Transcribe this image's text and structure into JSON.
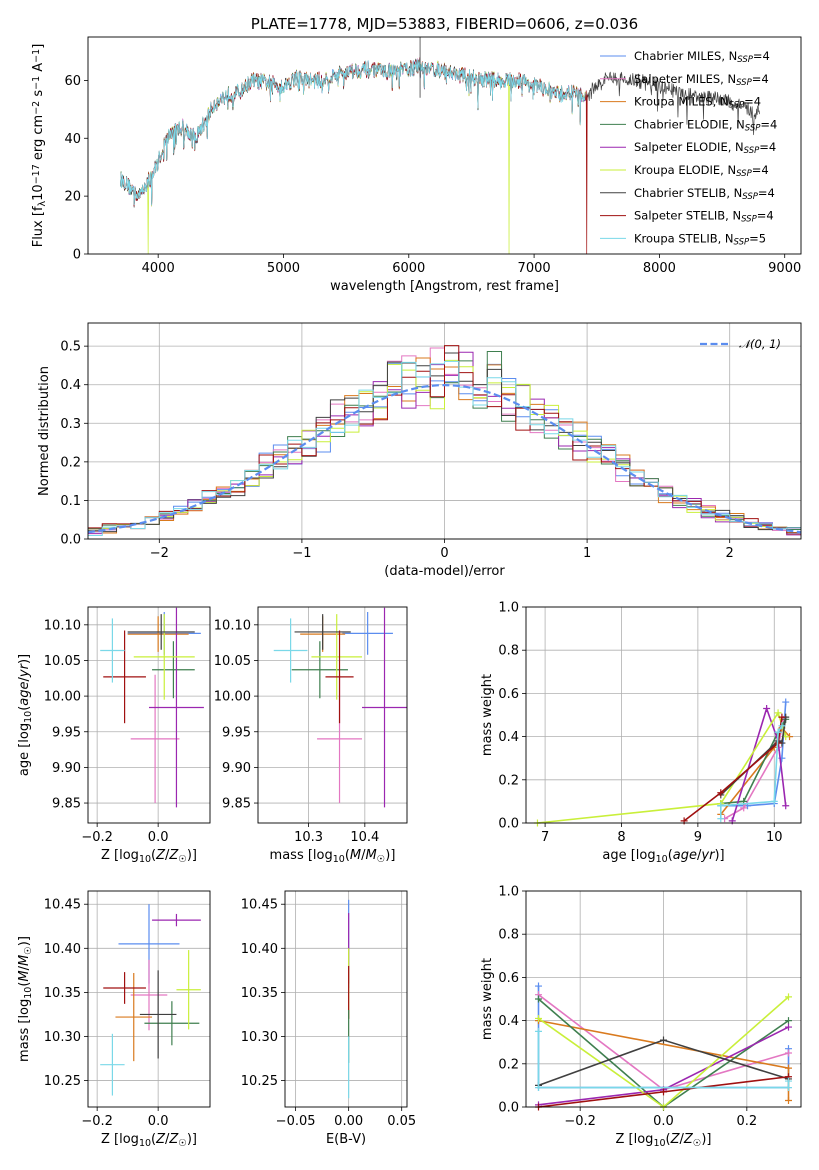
{
  "figure": {
    "title": "PLATE=1778, MJD=53883, FIBERID=0606, z=0.036"
  },
  "colors": {
    "Chabrier MILES": "#5b8def",
    "Salpeter MILES": "#e377c2",
    "Kroupa MILES": "#d97a1e",
    "Chabrier ELODIE": "#3f7f4f",
    "Salpeter ELODIE": "#9b27b0",
    "Kroupa ELODIE": "#c9ef3a",
    "Chabrier STELIB": "#404040",
    "Salpeter STELIB": "#a01010",
    "Kroupa STELIB": "#7ad8e8"
  },
  "legend": {
    "spectrum_series": [
      "Chabrier MILES, N_SSP=4",
      "Salpeter MILES, N_SSP=4",
      "Kroupa MILES, N_SSP=4",
      "Chabrier ELODIE, N_SSP=4",
      "Salpeter ELODIE, N_SSP=4",
      "Kroupa ELODIE, N_SSP=4",
      "Chabrier STELIB, N_SSP=4",
      "Salpeter STELIB, N_SSP=4",
      "Kroupa STELIB, N_SSP=5"
    ],
    "hist_gauss": "𝒩(0, 1)"
  },
  "chart_data": [
    {
      "id": "spectrum",
      "type": "line",
      "title": "PLATE=1778, MJD=53883, FIBERID=0606, z=0.036",
      "xlabel": "wavelength [Angstrom, rest frame]",
      "ylabel": "Flux [f_λ 10^-17 erg cm^-2 s^-1 A^-1]",
      "xlim": [
        3440,
        9130
      ],
      "ylim": [
        0,
        75
      ],
      "xticks": [
        4000,
        5000,
        6000,
        7000,
        8000,
        9000
      ],
      "yticks": [
        0,
        20,
        40,
        60
      ],
      "grid": false,
      "legend_position": "upper right",
      "spectrum_knots": [
        [
          3700,
          26
        ],
        [
          3750,
          24
        ],
        [
          3800,
          22
        ],
        [
          3850,
          20
        ],
        [
          3900,
          24
        ],
        [
          3950,
          27
        ],
        [
          4000,
          32
        ],
        [
          4050,
          38
        ],
        [
          4100,
          42
        ],
        [
          4200,
          44
        ],
        [
          4300,
          40
        ],
        [
          4350,
          44
        ],
        [
          4450,
          52
        ],
        [
          4550,
          55
        ],
        [
          4650,
          56
        ],
        [
          4750,
          60
        ],
        [
          4900,
          59
        ],
        [
          5000,
          58
        ],
        [
          5100,
          61
        ],
        [
          5200,
          60
        ],
        [
          5300,
          60
        ],
        [
          5500,
          63
        ],
        [
          5700,
          64
        ],
        [
          5800,
          63
        ],
        [
          5900,
          63
        ],
        [
          6000,
          64
        ],
        [
          6100,
          65
        ],
        [
          6300,
          63
        ],
        [
          6500,
          61
        ],
        [
          6700,
          60
        ],
        [
          6900,
          60
        ],
        [
          7000,
          58
        ],
        [
          7100,
          57
        ],
        [
          7200,
          55
        ],
        [
          7300,
          56
        ],
        [
          7400,
          54
        ],
        [
          7500,
          58
        ],
        [
          7600,
          61
        ],
        [
          7800,
          60
        ],
        [
          8000,
          58
        ],
        [
          8200,
          55
        ],
        [
          8400,
          54
        ],
        [
          8600,
          52
        ],
        [
          8700,
          50
        ],
        [
          8800,
          49
        ]
      ],
      "dropouts": [
        {
          "series": "Kroupa ELODIE",
          "x": 3920
        },
        {
          "series": "Kroupa ELODIE",
          "x": 6800
        },
        {
          "series": "Salpeter STELIB",
          "x": 7420
        }
      ],
      "series_extent": [
        {
          "name": "Chabrier MILES",
          "x": [
            3700,
            7410
          ]
        },
        {
          "name": "Salpeter MILES",
          "x": [
            3700,
            7410
          ]
        },
        {
          "name": "Kroupa MILES",
          "x": [
            3700,
            7410
          ]
        },
        {
          "name": "Chabrier ELODIE",
          "x": [
            3700,
            7410
          ]
        },
        {
          "name": "Salpeter ELODIE",
          "x": [
            3700,
            7410
          ]
        },
        {
          "name": "Kroupa ELODIE",
          "x": [
            3700,
            7410
          ]
        },
        {
          "name": "Chabrier STELIB",
          "x": [
            3700,
            8800
          ]
        },
        {
          "name": "Salpeter STELIB",
          "x": [
            3700,
            7420
          ]
        },
        {
          "name": "Kroupa STELIB",
          "x": [
            3700,
            7410
          ]
        }
      ]
    },
    {
      "id": "residual_hist",
      "type": "line",
      "xlabel": "(data-model)/error",
      "ylabel": "Normed distribution",
      "xlim": [
        -2.5,
        2.5
      ],
      "ylim": [
        0,
        0.56
      ],
      "xticks": [
        -2,
        -1,
        0,
        1,
        2
      ],
      "yticks": [
        0.0,
        0.1,
        0.2,
        0.3,
        0.4,
        0.5
      ],
      "grid": true,
      "legend_position": "upper right",
      "bin_width": 0.1,
      "gaussian": {
        "name": "𝒩(0, 1)",
        "mu": 0,
        "sigma": 1,
        "style": "dashed"
      }
    },
    {
      "id": "age_vs_Z",
      "type": "scatter",
      "xlabel": "Z [log10(Z/Z☉)]",
      "ylabel": "age [log10(age/yr)]",
      "xlim": [
        -0.23,
        0.17
      ],
      "ylim": [
        9.822,
        10.125
      ],
      "xticks": [
        -0.2,
        0.0
      ],
      "yticks": [
        9.85,
        9.9,
        9.95,
        10.0,
        10.05,
        10.1
      ],
      "grid": true,
      "points": [
        {
          "series": "Chabrier MILES",
          "x": 0.02,
          "y": 10.088,
          "xerr": 0.12,
          "yerr": 0.03
        },
        {
          "series": "Salpeter MILES",
          "x": -0.01,
          "y": 9.94,
          "xerr": 0.08,
          "yerr": 0.09
        },
        {
          "series": "Kroupa MILES",
          "x": 0.0,
          "y": 10.087,
          "xerr": 0.1,
          "yerr": 0.025
        },
        {
          "series": "Chabrier ELODIE",
          "x": 0.05,
          "y": 10.037,
          "xerr": 0.07,
          "yerr": 0.04
        },
        {
          "series": "Salpeter ELODIE",
          "x": 0.06,
          "y": 9.984,
          "xerr": 0.09,
          "yerr": 0.14
        },
        {
          "series": "Kroupa ELODIE",
          "x": 0.02,
          "y": 10.055,
          "xerr": 0.1,
          "yerr": 0.06
        },
        {
          "series": "Chabrier STELIB",
          "x": 0.01,
          "y": 10.09,
          "xerr": 0.11,
          "yerr": 0.025
        },
        {
          "series": "Salpeter STELIB",
          "x": -0.11,
          "y": 10.027,
          "xerr": 0.07,
          "yerr": 0.065
        },
        {
          "series": "Kroupa STELIB",
          "x": -0.15,
          "y": 10.064,
          "xerr": 0.04,
          "yerr": 0.045
        }
      ]
    },
    {
      "id": "age_vs_mass",
      "type": "scatter",
      "xlabel": "mass [log10(M/M☉)]",
      "ylabel": "",
      "xlim": [
        10.21,
        10.475
      ],
      "ylim": [
        9.822,
        10.125
      ],
      "xticks": [
        10.3,
        10.4
      ],
      "yticks": [
        9.85,
        9.9,
        9.95,
        10.0,
        10.05,
        10.1
      ],
      "grid": true,
      "points": [
        {
          "series": "Chabrier MILES",
          "x": 10.405,
          "y": 10.088,
          "xerr": 0.045,
          "yerr": 0.03
        },
        {
          "series": "Salpeter MILES",
          "x": 10.355,
          "y": 9.94,
          "xerr": 0.04,
          "yerr": 0.09
        },
        {
          "series": "Kroupa MILES",
          "x": 10.325,
          "y": 10.087,
          "xerr": 0.04,
          "yerr": 0.025
        },
        {
          "series": "Chabrier ELODIE",
          "x": 10.32,
          "y": 10.037,
          "xerr": 0.05,
          "yerr": 0.04
        },
        {
          "series": "Salpeter ELODIE",
          "x": 10.435,
          "y": 9.984,
          "xerr": 0.04,
          "yerr": 0.14
        },
        {
          "series": "Kroupa ELODIE",
          "x": 10.35,
          "y": 10.055,
          "xerr": 0.045,
          "yerr": 0.06
        },
        {
          "series": "Chabrier STELIB",
          "x": 10.325,
          "y": 10.09,
          "xerr": 0.05,
          "yerr": 0.025
        },
        {
          "series": "Salpeter STELIB",
          "x": 10.355,
          "y": 10.027,
          "xerr": 0.025,
          "yerr": 0.065
        },
        {
          "series": "Kroupa STELIB",
          "x": 10.268,
          "y": 10.064,
          "xerr": 0.03,
          "yerr": 0.045
        }
      ]
    },
    {
      "id": "weight_vs_age",
      "type": "line",
      "xlabel": "age [log10(age/yr)]",
      "ylabel": "mass weight",
      "xlim": [
        6.75,
        10.35
      ],
      "ylim": [
        0,
        1.0
      ],
      "xticks": [
        7,
        8,
        9,
        10
      ],
      "yticks": [
        0.0,
        0.2,
        0.4,
        0.6,
        0.8,
        1.0
      ],
      "grid": true,
      "series": [
        {
          "name": "Chabrier MILES",
          "x": [
            9.3,
            9.65,
            10.0,
            10.1,
            10.15
          ],
          "y": [
            0.08,
            0.08,
            0.09,
            0.3,
            0.56
          ]
        },
        {
          "name": "Salpeter MILES",
          "x": [
            9.35,
            9.6,
            10.05,
            10.12
          ],
          "y": [
            0.02,
            0.07,
            0.35,
            0.48
          ]
        },
        {
          "name": "Kroupa MILES",
          "x": [
            9.3,
            10.0,
            10.1,
            10.2
          ],
          "y": [
            0.04,
            0.35,
            0.44,
            0.4
          ]
        },
        {
          "name": "Chabrier ELODIE",
          "x": [
            9.3,
            9.6,
            10.05,
            10.15
          ],
          "y": [
            0.09,
            0.1,
            0.42,
            0.48
          ]
        },
        {
          "name": "Salpeter ELODIE",
          "x": [
            9.45,
            9.9,
            10.05,
            10.15
          ],
          "y": [
            0.01,
            0.53,
            0.38,
            0.08
          ]
        },
        {
          "name": "Kroupa ELODIE",
          "x": [
            6.9,
            9.3,
            10.05,
            10.15
          ],
          "y": [
            0.0,
            0.09,
            0.51,
            0.4
          ]
        },
        {
          "name": "Chabrier STELIB",
          "x": [
            9.3,
            10.05,
            10.1,
            10.15
          ],
          "y": [
            0.13,
            0.38,
            0.37,
            0.49
          ]
        },
        {
          "name": "Salpeter STELIB",
          "x": [
            8.82,
            9.3,
            10.05,
            10.1
          ],
          "y": [
            0.01,
            0.14,
            0.37,
            0.49
          ]
        },
        {
          "name": "Kroupa STELIB",
          "x": [
            9.3,
            9.3,
            10.0,
            10.05,
            10.1
          ],
          "y": [
            0.02,
            0.08,
            0.1,
            0.42,
            0.45
          ]
        }
      ]
    },
    {
      "id": "mass_vs_Z",
      "type": "scatter",
      "xlabel": "Z [log10(Z/Z☉)]",
      "ylabel": "mass [log10(M/M☉)]",
      "xlim": [
        -0.23,
        0.17
      ],
      "ylim": [
        10.22,
        10.465
      ],
      "xticks": [
        -0.2,
        0.0
      ],
      "yticks": [
        10.25,
        10.3,
        10.35,
        10.4,
        10.45
      ],
      "grid": true,
      "points": [
        {
          "series": "Chabrier MILES",
          "x": -0.03,
          "y": 10.405,
          "xerr": 0.1,
          "yerr": 0.045
        },
        {
          "series": "Salpeter MILES",
          "x": -0.03,
          "y": 10.347,
          "xerr": 0.06,
          "yerr": 0.04
        },
        {
          "series": "Kroupa MILES",
          "x": -0.08,
          "y": 10.322,
          "xerr": 0.06,
          "yerr": 0.05
        },
        {
          "series": "Chabrier ELODIE",
          "x": 0.045,
          "y": 10.315,
          "xerr": 0.09,
          "yerr": 0.025
        },
        {
          "series": "Salpeter ELODIE",
          "x": 0.06,
          "y": 10.432,
          "xerr": 0.08,
          "yerr": 0.007
        },
        {
          "series": "Kroupa ELODIE",
          "x": 0.1,
          "y": 10.353,
          "xerr": 0.04,
          "yerr": 0.045
        },
        {
          "series": "Chabrier STELIB",
          "x": -0.0,
          "y": 10.325,
          "xerr": 0.06,
          "yerr": 0.05
        },
        {
          "series": "Salpeter STELIB",
          "x": -0.11,
          "y": 10.355,
          "xerr": 0.07,
          "yerr": 0.018
        },
        {
          "series": "Kroupa STELIB",
          "x": -0.15,
          "y": 10.268,
          "xerr": 0.04,
          "yerr": 0.035
        }
      ]
    },
    {
      "id": "mass_vs_EBV",
      "type": "scatter",
      "xlabel": "E(B-V)",
      "ylabel": "",
      "xlim": [
        -0.06,
        0.055
      ],
      "ylim": [
        10.22,
        10.465
      ],
      "xticks": [
        -0.05,
        0.0,
        0.05
      ],
      "yticks": [
        10.25,
        10.3,
        10.35,
        10.4,
        10.45
      ],
      "grid": true,
      "points": [
        {
          "series": "Chabrier MILES",
          "x": 0.0,
          "y": 10.405,
          "xerr": 0.0,
          "yerr": 0.05
        },
        {
          "series": "Salpeter ELODIE",
          "x": 0.0,
          "y": 10.4,
          "xerr": 0.0,
          "yerr": 0.04
        },
        {
          "series": "Kroupa ELODIE",
          "x": 0.0,
          "y": 10.36,
          "xerr": 0.0,
          "yerr": 0.04
        },
        {
          "series": "Salpeter STELIB",
          "x": 0.0,
          "y": 10.35,
          "xerr": 0.0,
          "yerr": 0.03
        },
        {
          "series": "Chabrier ELODIE",
          "x": 0.0,
          "y": 10.3,
          "xerr": 0.0,
          "yerr": 0.03
        },
        {
          "series": "Kroupa STELIB",
          "x": 0.0,
          "y": 10.265,
          "xerr": 0.0,
          "yerr": 0.035
        }
      ]
    },
    {
      "id": "weight_vs_Z",
      "type": "line",
      "xlabel": "Z [log10(Z/Z☉)]",
      "ylabel": "mass weight",
      "xlim": [
        -0.33,
        0.33
      ],
      "ylim": [
        0,
        1.0
      ],
      "xticks": [
        -0.2,
        0.0,
        0.2
      ],
      "yticks": [
        0.0,
        0.2,
        0.4,
        0.6,
        0.8,
        1.0
      ],
      "grid": true,
      "series": [
        {
          "name": "Chabrier MILES",
          "x": [
            -0.3,
            -0.3,
            0.3,
            0.3
          ],
          "y": [
            0.56,
            0.09,
            0.09,
            0.27
          ]
        },
        {
          "name": "Salpeter MILES",
          "x": [
            -0.3,
            0.0,
            0.3
          ],
          "y": [
            0.52,
            0.08,
            0.25
          ]
        },
        {
          "name": "Kroupa MILES",
          "x": [
            -0.3,
            0.3,
            0.3
          ],
          "y": [
            0.4,
            0.18,
            0.03
          ]
        },
        {
          "name": "Chabrier ELODIE",
          "x": [
            -0.3,
            0.0,
            0.3
          ],
          "y": [
            0.5,
            0.0,
            0.4
          ]
        },
        {
          "name": "Salpeter ELODIE",
          "x": [
            -0.3,
            0.0,
            0.3
          ],
          "y": [
            0.01,
            0.08,
            0.37
          ]
        },
        {
          "name": "Kroupa ELODIE",
          "x": [
            -0.3,
            0.0,
            0.3
          ],
          "y": [
            0.41,
            0.0,
            0.51
          ]
        },
        {
          "name": "Chabrier STELIB",
          "x": [
            -0.3,
            0.0,
            0.3
          ],
          "y": [
            0.1,
            0.31,
            0.13
          ]
        },
        {
          "name": "Salpeter STELIB",
          "x": [
            -0.3,
            0.0,
            0.3
          ],
          "y": [
            0.0,
            0.07,
            0.14
          ]
        },
        {
          "name": "Kroupa STELIB",
          "x": [
            -0.3,
            -0.3,
            0.3,
            0.3
          ],
          "y": [
            0.35,
            0.09,
            0.09,
            0.12
          ]
        }
      ]
    }
  ]
}
